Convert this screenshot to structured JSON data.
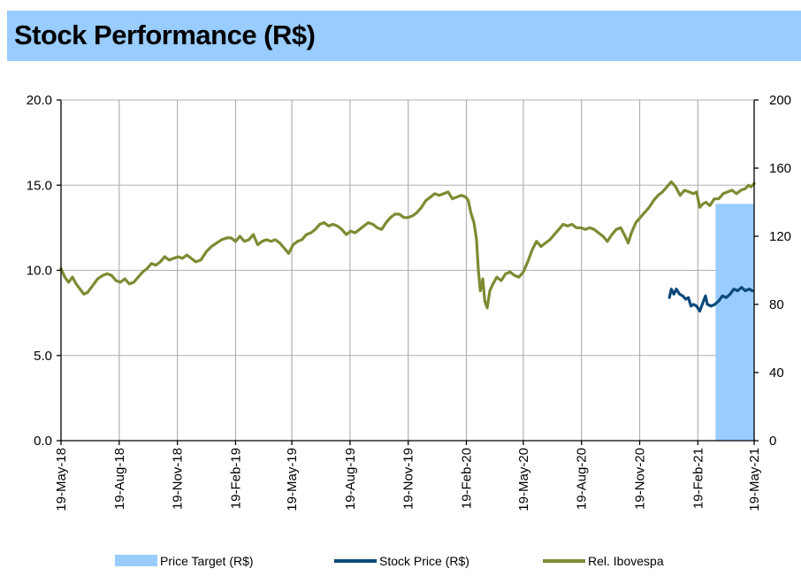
{
  "page_title": "Stock Performance (R$)",
  "colors": {
    "title_bg": "#99ccff",
    "price_target": "#99ccff",
    "stock_price": "#0b4a7a",
    "rel_ibovespa": "#7f8a33",
    "grid": "#b0b0b0"
  },
  "chart_data": {
    "type": "line",
    "title": "Stock Performance (R$)",
    "y_left": {
      "ticks": [
        "0.0",
        "5.0",
        "10.0",
        "15.0",
        "20.0"
      ],
      "range": [
        0,
        20
      ]
    },
    "y_right": {
      "ticks": [
        "0",
        "40",
        "80",
        "120",
        "160",
        "200"
      ],
      "range": [
        0,
        200
      ]
    },
    "x_range": [
      "2018-05-19",
      "2021-05-19"
    ],
    "x_ticks": [
      "19-May-18",
      "19-Aug-18",
      "19-Nov-18",
      "19-Feb-19",
      "19-May-19",
      "19-Aug-19",
      "19-Nov-19",
      "19-Feb-20",
      "19-May-20",
      "19-Aug-20",
      "19-Nov-20",
      "19-Feb-21",
      "19-May-21"
    ],
    "grid": "vertical",
    "legend_position": "bottom",
    "series": [
      {
        "name": "Price Target (R$)",
        "type": "area",
        "axis": "left",
        "from": "2021-03-19",
        "to": "2021-05-19",
        "value": 13.9
      },
      {
        "name": "Stock Price (R$)",
        "type": "line",
        "axis": "left",
        "points": [
          [
            "2021-01-05",
            8.4
          ],
          [
            "2021-01-08",
            8.9
          ],
          [
            "2021-01-12",
            8.6
          ],
          [
            "2021-01-16",
            8.9
          ],
          [
            "2021-01-21",
            8.6
          ],
          [
            "2021-01-26",
            8.5
          ],
          [
            "2021-01-31",
            8.3
          ],
          [
            "2021-02-04",
            8.4
          ],
          [
            "2021-02-08",
            7.9
          ],
          [
            "2021-02-12",
            8.0
          ],
          [
            "2021-02-17",
            7.9
          ],
          [
            "2021-02-22",
            7.6
          ],
          [
            "2021-02-26",
            8.0
          ],
          [
            "2021-03-03",
            8.5
          ],
          [
            "2021-03-06",
            8.0
          ],
          [
            "2021-03-12",
            7.9
          ],
          [
            "2021-03-18",
            8.0
          ],
          [
            "2021-03-24",
            8.2
          ],
          [
            "2021-03-30",
            8.5
          ],
          [
            "2021-04-05",
            8.4
          ],
          [
            "2021-04-11",
            8.6
          ],
          [
            "2021-04-17",
            8.9
          ],
          [
            "2021-04-23",
            8.8
          ],
          [
            "2021-04-29",
            9.0
          ],
          [
            "2021-05-05",
            8.8
          ],
          [
            "2021-05-11",
            8.9
          ],
          [
            "2021-05-16",
            8.8
          ]
        ]
      },
      {
        "name": "Rel. Ibovespa",
        "type": "line",
        "axis": "right",
        "points": [
          [
            "2018-05-19",
            101
          ],
          [
            "2018-05-25",
            96
          ],
          [
            "2018-05-31",
            93
          ],
          [
            "2018-06-06",
            96
          ],
          [
            "2018-06-12",
            92
          ],
          [
            "2018-06-18",
            89
          ],
          [
            "2018-06-24",
            86
          ],
          [
            "2018-06-30",
            87
          ],
          [
            "2018-07-08",
            91
          ],
          [
            "2018-07-16",
            95
          ],
          [
            "2018-07-24",
            97
          ],
          [
            "2018-07-31",
            98
          ],
          [
            "2018-08-07",
            97
          ],
          [
            "2018-08-14",
            94
          ],
          [
            "2018-08-21",
            93
          ],
          [
            "2018-08-28",
            95
          ],
          [
            "2018-09-04",
            92
          ],
          [
            "2018-09-11",
            93
          ],
          [
            "2018-09-18",
            96
          ],
          [
            "2018-09-25",
            99
          ],
          [
            "2018-10-02",
            101
          ],
          [
            "2018-10-09",
            104
          ],
          [
            "2018-10-16",
            103
          ],
          [
            "2018-10-23",
            105
          ],
          [
            "2018-10-30",
            108
          ],
          [
            "2018-11-06",
            106
          ],
          [
            "2018-11-13",
            107
          ],
          [
            "2018-11-20",
            108
          ],
          [
            "2018-11-27",
            107
          ],
          [
            "2018-12-04",
            109
          ],
          [
            "2018-12-11",
            107
          ],
          [
            "2018-12-18",
            105
          ],
          [
            "2018-12-26",
            106
          ],
          [
            "2019-01-04",
            111
          ],
          [
            "2019-01-12",
            114
          ],
          [
            "2019-01-20",
            116
          ],
          [
            "2019-01-28",
            118
          ],
          [
            "2019-02-05",
            119
          ],
          [
            "2019-02-12",
            119
          ],
          [
            "2019-02-19",
            117
          ],
          [
            "2019-02-26",
            120
          ],
          [
            "2019-03-05",
            117
          ],
          [
            "2019-03-12",
            118
          ],
          [
            "2019-03-19",
            121
          ],
          [
            "2019-03-26",
            115
          ],
          [
            "2019-04-02",
            117
          ],
          [
            "2019-04-09",
            118
          ],
          [
            "2019-04-16",
            117
          ],
          [
            "2019-04-23",
            118
          ],
          [
            "2019-04-30",
            116
          ],
          [
            "2019-05-07",
            113
          ],
          [
            "2019-05-14",
            110
          ],
          [
            "2019-05-21",
            115
          ],
          [
            "2019-05-28",
            117
          ],
          [
            "2019-06-04",
            118
          ],
          [
            "2019-06-11",
            121
          ],
          [
            "2019-06-18",
            122
          ],
          [
            "2019-06-25",
            124
          ],
          [
            "2019-07-02",
            127
          ],
          [
            "2019-07-09",
            128
          ],
          [
            "2019-07-16",
            126
          ],
          [
            "2019-07-23",
            127
          ],
          [
            "2019-07-30",
            126
          ],
          [
            "2019-08-06",
            124
          ],
          [
            "2019-08-13",
            121
          ],
          [
            "2019-08-20",
            123
          ],
          [
            "2019-08-27",
            122
          ],
          [
            "2019-09-03",
            124
          ],
          [
            "2019-09-10",
            126
          ],
          [
            "2019-09-17",
            128
          ],
          [
            "2019-09-24",
            127
          ],
          [
            "2019-10-01",
            125
          ],
          [
            "2019-10-08",
            124
          ],
          [
            "2019-10-15",
            128
          ],
          [
            "2019-10-22",
            131
          ],
          [
            "2019-10-29",
            133
          ],
          [
            "2019-11-05",
            133
          ],
          [
            "2019-11-12",
            131
          ],
          [
            "2019-11-19",
            131
          ],
          [
            "2019-11-26",
            132
          ],
          [
            "2019-12-03",
            134
          ],
          [
            "2019-12-10",
            137
          ],
          [
            "2019-12-17",
            141
          ],
          [
            "2019-12-24",
            143
          ],
          [
            "2019-12-31",
            145
          ],
          [
            "2020-01-07",
            144
          ],
          [
            "2020-01-14",
            145
          ],
          [
            "2020-01-21",
            146
          ],
          [
            "2020-01-28",
            142
          ],
          [
            "2020-02-04",
            143
          ],
          [
            "2020-02-11",
            144
          ],
          [
            "2020-02-18",
            143
          ],
          [
            "2020-02-22",
            141
          ],
          [
            "2020-02-26",
            134
          ],
          [
            "2020-03-02",
            128
          ],
          [
            "2020-03-06",
            118
          ],
          [
            "2020-03-09",
            100
          ],
          [
            "2020-03-12",
            88
          ],
          [
            "2020-03-16",
            95
          ],
          [
            "2020-03-19",
            82
          ],
          [
            "2020-03-23",
            78
          ],
          [
            "2020-03-27",
            88
          ],
          [
            "2020-04-01",
            92
          ],
          [
            "2020-04-07",
            96
          ],
          [
            "2020-04-14",
            94
          ],
          [
            "2020-04-21",
            98
          ],
          [
            "2020-04-28",
            99
          ],
          [
            "2020-05-05",
            97
          ],
          [
            "2020-05-12",
            96
          ],
          [
            "2020-05-19",
            99
          ],
          [
            "2020-05-26",
            105
          ],
          [
            "2020-06-02",
            112
          ],
          [
            "2020-06-09",
            117
          ],
          [
            "2020-06-16",
            114
          ],
          [
            "2020-06-23",
            116
          ],
          [
            "2020-06-30",
            118
          ],
          [
            "2020-07-07",
            121
          ],
          [
            "2020-07-14",
            124
          ],
          [
            "2020-07-21",
            127
          ],
          [
            "2020-07-28",
            126
          ],
          [
            "2020-08-04",
            127
          ],
          [
            "2020-08-11",
            125
          ],
          [
            "2020-08-18",
            125
          ],
          [
            "2020-08-25",
            124
          ],
          [
            "2020-09-01",
            125
          ],
          [
            "2020-09-08",
            124
          ],
          [
            "2020-09-15",
            122
          ],
          [
            "2020-09-22",
            120
          ],
          [
            "2020-09-29",
            117
          ],
          [
            "2020-10-06",
            121
          ],
          [
            "2020-10-13",
            124
          ],
          [
            "2020-10-20",
            125
          ],
          [
            "2020-10-27",
            120
          ],
          [
            "2020-11-01",
            116
          ],
          [
            "2020-11-06",
            122
          ],
          [
            "2020-11-13",
            128
          ],
          [
            "2020-11-20",
            131
          ],
          [
            "2020-11-27",
            134
          ],
          [
            "2020-12-04",
            137
          ],
          [
            "2020-12-11",
            141
          ],
          [
            "2020-12-18",
            144
          ],
          [
            "2020-12-25",
            146
          ],
          [
            "2021-01-01",
            149
          ],
          [
            "2021-01-08",
            152
          ],
          [
            "2021-01-15",
            149
          ],
          [
            "2021-01-22",
            144
          ],
          [
            "2021-01-29",
            147
          ],
          [
            "2021-02-05",
            146
          ],
          [
            "2021-02-12",
            145
          ],
          [
            "2021-02-17",
            146
          ],
          [
            "2021-02-22",
            137
          ],
          [
            "2021-02-27",
            139
          ],
          [
            "2021-03-04",
            140
          ],
          [
            "2021-03-10",
            138
          ],
          [
            "2021-03-17",
            142
          ],
          [
            "2021-03-24",
            142
          ],
          [
            "2021-03-31",
            145
          ],
          [
            "2021-04-07",
            146
          ],
          [
            "2021-04-14",
            147
          ],
          [
            "2021-04-21",
            145
          ],
          [
            "2021-04-28",
            147
          ],
          [
            "2021-05-05",
            148
          ],
          [
            "2021-05-10",
            150
          ],
          [
            "2021-05-14",
            149
          ],
          [
            "2021-05-19",
            151
          ]
        ]
      }
    ]
  }
}
